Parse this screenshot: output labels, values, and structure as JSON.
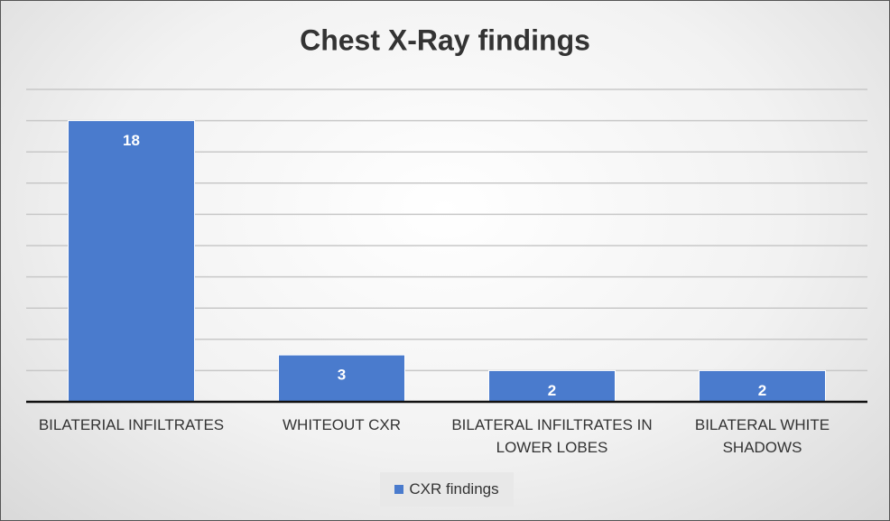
{
  "chart_data": {
    "type": "bar",
    "title": "Chest X-Ray findings",
    "categories": [
      "BILATERIAL INFILTRATES",
      "WHITEOUT CXR",
      "BILATERAL INFILTRATES IN LOWER LOBES",
      "BILATERAL WHITE SHADOWS"
    ],
    "series": [
      {
        "name": "CXR findings",
        "color": "#4a7bcd",
        "values": [
          18,
          3,
          2,
          2
        ]
      }
    ],
    "ylim": [
      0,
      20
    ],
    "yticks": [
      0,
      2,
      4,
      6,
      8,
      10,
      12,
      14,
      16,
      18,
      20
    ],
    "grid": true,
    "legend": "bottom"
  }
}
